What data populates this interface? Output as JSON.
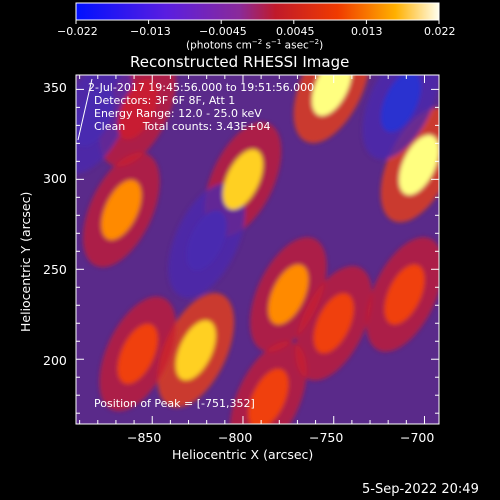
{
  "colorbar": {
    "tick_labels": [
      "−0.022",
      "−0.013",
      "−0.0045",
      "0.0045",
      "0.013",
      "0.022"
    ],
    "units_prefix": "(photons cm",
    "units_exp1": "−2",
    "units_mid": " s",
    "units_exp2": "−1",
    "units_mid2": " asec",
    "units_exp3": "−2",
    "units_suffix": ")",
    "range": [
      -0.022,
      0.022
    ]
  },
  "title": "Reconstructed RHESSI Image",
  "info": {
    "line1": "2-Jul-2017 19:45:56.000 to 19:51:56.000",
    "line2": "Detectors: 3F 6F 8F, Att 1",
    "line3": "Energy Range: 12.0 - 25.0 keV",
    "line4": "Clean     Total counts: 3.43E+04"
  },
  "peak_label": "Position of Peak = [-751,352]",
  "date_stamp": "5-Sep-2022 20:49",
  "colors": {
    "background": "#000000",
    "text": "#ffffff"
  },
  "chart_data": {
    "type": "heatmap",
    "title": "Reconstructed RHESSI Image",
    "xlabel": "Heliocentric X (arcsec)",
    "ylabel": "Heliocentric Y (arcsec)",
    "xlim": [
      -892,
      -692
    ],
    "ylim": [
      164,
      358
    ],
    "x_ticks": [
      "−850",
      "−800",
      "−750",
      "−700"
    ],
    "x_tick_values": [
      -850,
      -800,
      -750,
      -700
    ],
    "y_ticks": [
      "200",
      "250",
      "300",
      "350"
    ],
    "y_tick_values": [
      200,
      250,
      300,
      350
    ],
    "colormap": "blue-purple-red-yellow-white",
    "peak": [
      -751,
      352
    ],
    "bright_sources": [
      {
        "x": -751,
        "y": 352,
        "level": 1.0
      },
      {
        "x": -703,
        "y": 308,
        "level": 0.95
      },
      {
        "x": -800,
        "y": 300,
        "level": 0.85
      },
      {
        "x": -826,
        "y": 205,
        "level": 0.9
      },
      {
        "x": -867,
        "y": 283,
        "level": 0.75
      },
      {
        "x": -858,
        "y": 203,
        "level": 0.65
      },
      {
        "x": -775,
        "y": 236,
        "level": 0.75
      },
      {
        "x": -750,
        "y": 220,
        "level": 0.65
      },
      {
        "x": -786,
        "y": 178,
        "level": 0.6
      },
      {
        "x": -858,
        "y": 339,
        "level": 0.5
      },
      {
        "x": -711,
        "y": 236,
        "level": 0.6
      }
    ],
    "dark_regions": [
      {
        "x": -713,
        "y": 343,
        "level": -0.6
      },
      {
        "x": -882,
        "y": 335,
        "level": -0.3
      },
      {
        "x": -820,
        "y": 266,
        "level": -0.3
      }
    ]
  }
}
